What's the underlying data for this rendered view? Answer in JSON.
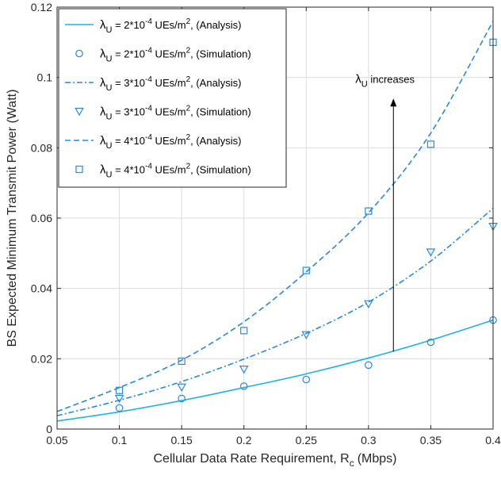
{
  "chart_data": {
    "type": "line",
    "xlabel": "Cellular Data Rate Requirement, R",
    "xlabel_sub": "c",
    "xlabel_unit": "(Mbps)",
    "ylabel": "BS Expected Minimum Transmit Power (Watt)",
    "xlim": [
      0.05,
      0.4
    ],
    "ylim": [
      0,
      0.12
    ],
    "xticks": [
      "0.05",
      "0.1",
      "0.15",
      "0.2",
      "0.25",
      "0.3",
      "0.35",
      "0.4"
    ],
    "yticks": [
      "0",
      "0.02",
      "0.04",
      "0.06",
      "0.08",
      "0.1",
      "0.12"
    ],
    "grid": true,
    "legend_position": "top-left",
    "color": "#2a88d8",
    "color_light": "#1fb2e8",
    "series": [
      {
        "name": "λU = 2*10-4 UEs/m2, (Analysis)",
        "lambda_sym": "λ",
        "lambda_sub": "U",
        "rate": " = 2*10",
        "exp": "-4",
        "unit": " UEs/m",
        "unit_exp": "2",
        "kind": ", (Analysis)",
        "style": "solid",
        "marker": "none",
        "x": [
          0.05,
          0.1,
          0.15,
          0.2,
          0.25,
          0.3,
          0.35,
          0.4
        ],
        "values": [
          0.0023,
          0.0049,
          0.0081,
          0.0118,
          0.0157,
          0.0202,
          0.0253,
          0.031
        ]
      },
      {
        "name": "λU = 2*10-4 UEs/m2, (Simulation)",
        "lambda_sym": "λ",
        "lambda_sub": "U",
        "rate": " = 2*10",
        "exp": "-4",
        "unit": " UEs/m",
        "unit_exp": "2",
        "kind": ", (Simulation)",
        "style": "none",
        "marker": "circle",
        "x": [
          0.1,
          0.15,
          0.2,
          0.25,
          0.3,
          0.35,
          0.4
        ],
        "values": [
          0.006,
          0.0087,
          0.0122,
          0.0141,
          0.0182,
          0.0247,
          0.031
        ]
      },
      {
        "name": "λU = 3*10-4 UEs/m2, (Analysis)",
        "lambda_sym": "λ",
        "lambda_sub": "U",
        "rate": " = 3*10",
        "exp": "-4",
        "unit": " UEs/m",
        "unit_exp": "2",
        "kind": ", (Analysis)",
        "style": "dashdot",
        "marker": "none",
        "x": [
          0.05,
          0.1,
          0.15,
          0.2,
          0.25,
          0.3,
          0.35,
          0.4
        ],
        "values": [
          0.0038,
          0.0082,
          0.0135,
          0.0199,
          0.0272,
          0.0361,
          0.0478,
          0.0628
        ]
      },
      {
        "name": "λU = 3*10-4 UEs/m2, (Simulation)",
        "lambda_sym": "λ",
        "lambda_sub": "U",
        "rate": " = 3*10",
        "exp": "-4",
        "unit": " UEs/m",
        "unit_exp": "2",
        "kind": ", (Simulation)",
        "style": "none",
        "marker": "triangle-down",
        "x": [
          0.1,
          0.15,
          0.2,
          0.25,
          0.3,
          0.35,
          0.4
        ],
        "values": [
          0.0087,
          0.0119,
          0.017,
          0.0268,
          0.0356,
          0.0503,
          0.0576
        ]
      },
      {
        "name": "λU = 4*10-4 UEs/m2, (Analysis)",
        "lambda_sym": "λ",
        "lambda_sub": "U",
        "rate": " = 4*10",
        "exp": "-4",
        "unit": " UEs/m",
        "unit_exp": "2",
        "kind": ", (Analysis)",
        "style": "dashed",
        "marker": "none",
        "x": [
          0.05,
          0.1,
          0.15,
          0.2,
          0.25,
          0.3,
          0.35,
          0.4
        ],
        "values": [
          0.005,
          0.0118,
          0.0196,
          0.0305,
          0.0447,
          0.0615,
          0.0842,
          0.116
        ]
      },
      {
        "name": "λU = 4*10-4 UEs/m2, (Simulation)",
        "lambda_sym": "λ",
        "lambda_sub": "U",
        "rate": " = 4*10",
        "exp": "-4",
        "unit": " UEs/m",
        "unit_exp": "2",
        "kind": ", (Simulation)",
        "style": "none",
        "marker": "square",
        "x": [
          0.1,
          0.15,
          0.2,
          0.25,
          0.3,
          0.35,
          0.4
        ],
        "values": [
          0.011,
          0.0193,
          0.028,
          0.0451,
          0.062,
          0.081,
          0.11
        ]
      }
    ],
    "annotation": {
      "lambda_sym": "λ",
      "lambda_sub": "U",
      "text": " increases",
      "arrow_x": 0.32,
      "arrow_from": 0.022,
      "arrow_to": 0.094
    }
  }
}
